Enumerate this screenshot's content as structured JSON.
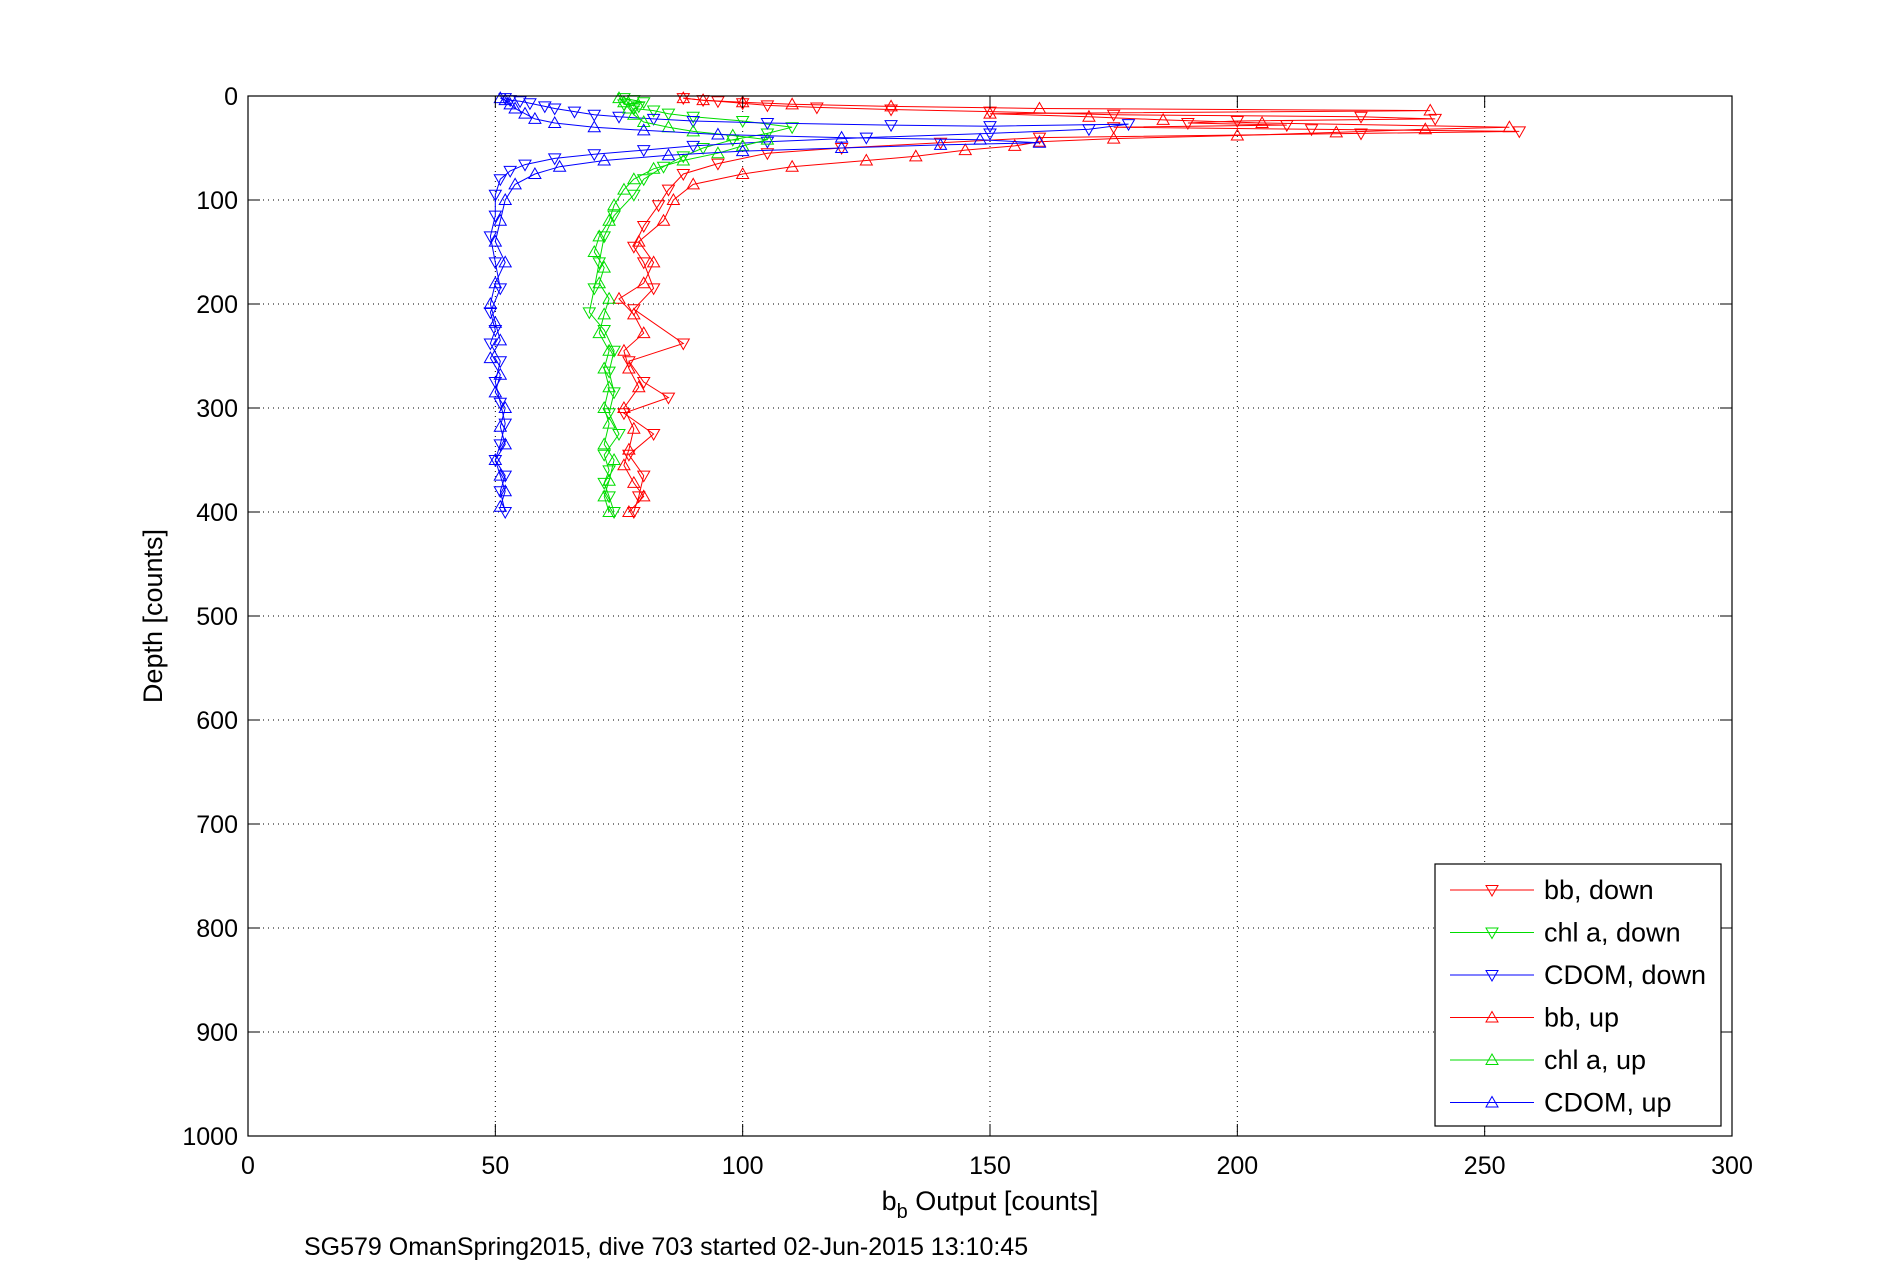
{
  "chart_data": {
    "type": "scatter",
    "xlabel": {
      "main": "b",
      "sub": "b",
      "rest": " Output [counts]"
    },
    "ylabel": "Depth [counts]",
    "caption": "SG579 OmanSpring2015, dive 703 started 02-Jun-2015 13:10:45",
    "xlim": [
      0,
      300
    ],
    "ylim": [
      0,
      1000
    ],
    "y_reversed": true,
    "grid": true,
    "legend_position": "bottom-right",
    "x_ticks": [
      "0",
      "50",
      "100",
      "150",
      "200",
      "250",
      "300"
    ],
    "y_ticks": [
      "0",
      "100",
      "200",
      "300",
      "400",
      "500",
      "600",
      "700",
      "800",
      "900",
      "1000"
    ],
    "series": [
      {
        "name": "bb, down",
        "color": "#ff0000",
        "marker": "triangle-down",
        "points": [
          [
            88,
            2
          ],
          [
            92,
            4
          ],
          [
            95,
            5
          ],
          [
            100,
            7
          ],
          [
            105,
            9
          ],
          [
            115,
            11
          ],
          [
            130,
            13
          ],
          [
            150,
            15
          ],
          [
            175,
            18
          ],
          [
            225,
            20
          ],
          [
            240,
            22
          ],
          [
            200,
            24
          ],
          [
            190,
            26
          ],
          [
            210,
            28
          ],
          [
            175,
            30
          ],
          [
            215,
            32
          ],
          [
            257,
            34
          ],
          [
            225,
            36
          ],
          [
            160,
            40
          ],
          [
            140,
            45
          ],
          [
            120,
            50
          ],
          [
            105,
            55
          ],
          [
            95,
            65
          ],
          [
            88,
            75
          ],
          [
            85,
            90
          ],
          [
            83,
            105
          ],
          [
            80,
            125
          ],
          [
            78,
            145
          ],
          [
            80,
            160
          ],
          [
            82,
            185
          ],
          [
            78,
            205
          ],
          [
            88,
            238
          ],
          [
            77,
            255
          ],
          [
            80,
            275
          ],
          [
            85,
            290
          ],
          [
            76,
            305
          ],
          [
            82,
            325
          ],
          [
            77,
            345
          ],
          [
            80,
            365
          ],
          [
            79,
            385
          ],
          [
            78,
            400
          ]
        ]
      },
      {
        "name": "chl a, down",
        "color": "#00dd00",
        "marker": "triangle-down",
        "points": [
          [
            76,
            2
          ],
          [
            78,
            4
          ],
          [
            80,
            6
          ],
          [
            76,
            8
          ],
          [
            79,
            10
          ],
          [
            78,
            12
          ],
          [
            82,
            14
          ],
          [
            85,
            17
          ],
          [
            90,
            20
          ],
          [
            100,
            24
          ],
          [
            110,
            30
          ],
          [
            105,
            36
          ],
          [
            98,
            42
          ],
          [
            92,
            50
          ],
          [
            88,
            58
          ],
          [
            84,
            68
          ],
          [
            80,
            80
          ],
          [
            78,
            95
          ],
          [
            74,
            115
          ],
          [
            72,
            135
          ],
          [
            71,
            160
          ],
          [
            70,
            185
          ],
          [
            69,
            208
          ],
          [
            72,
            225
          ],
          [
            74,
            245
          ],
          [
            73,
            265
          ],
          [
            74,
            285
          ],
          [
            73,
            305
          ],
          [
            75,
            325
          ],
          [
            72,
            345
          ],
          [
            73,
            360
          ],
          [
            72,
            372
          ],
          [
            73,
            385
          ],
          [
            74,
            400
          ]
        ]
      },
      {
        "name": "CDOM, down",
        "color": "#0000ff",
        "marker": "triangle-down",
        "points": [
          [
            52,
            2
          ],
          [
            53,
            4
          ],
          [
            55,
            5
          ],
          [
            57,
            7
          ],
          [
            60,
            10
          ],
          [
            62,
            12
          ],
          [
            66,
            15
          ],
          [
            70,
            18
          ],
          [
            75,
            20
          ],
          [
            82,
            22
          ],
          [
            90,
            24
          ],
          [
            105,
            26
          ],
          [
            130,
            28
          ],
          [
            150,
            29
          ],
          [
            178,
            27
          ],
          [
            170,
            32
          ],
          [
            150,
            36
          ],
          [
            125,
            40
          ],
          [
            105,
            44
          ],
          [
            90,
            48
          ],
          [
            80,
            52
          ],
          [
            70,
            56
          ],
          [
            62,
            60
          ],
          [
            56,
            66
          ],
          [
            53,
            72
          ],
          [
            51,
            80
          ],
          [
            50,
            95
          ],
          [
            50,
            115
          ],
          [
            49,
            135
          ],
          [
            50,
            160
          ],
          [
            51,
            185
          ],
          [
            49,
            208
          ],
          [
            50,
            225
          ],
          [
            49,
            238
          ],
          [
            51,
            255
          ],
          [
            50,
            275
          ],
          [
            51,
            295
          ],
          [
            52,
            315
          ],
          [
            51,
            335
          ],
          [
            50,
            350
          ],
          [
            52,
            365
          ],
          [
            51,
            380
          ],
          [
            52,
            400
          ]
        ]
      },
      {
        "name": "bb, up",
        "color": "#ff0000",
        "marker": "triangle-up",
        "points": [
          [
            77,
            400
          ],
          [
            80,
            385
          ],
          [
            78,
            372
          ],
          [
            76,
            355
          ],
          [
            77,
            340
          ],
          [
            78,
            320
          ],
          [
            76,
            300
          ],
          [
            79,
            280
          ],
          [
            77,
            262
          ],
          [
            76,
            245
          ],
          [
            80,
            228
          ],
          [
            78,
            210
          ],
          [
            75,
            195
          ],
          [
            80,
            180
          ],
          [
            82,
            160
          ],
          [
            79,
            140
          ],
          [
            84,
            120
          ],
          [
            86,
            100
          ],
          [
            90,
            85
          ],
          [
            100,
            75
          ],
          [
            110,
            68
          ],
          [
            125,
            62
          ],
          [
            135,
            58
          ],
          [
            145,
            52
          ],
          [
            155,
            48
          ],
          [
            160,
            44
          ],
          [
            175,
            41
          ],
          [
            200,
            38
          ],
          [
            220,
            35
          ],
          [
            238,
            32
          ],
          [
            255,
            30
          ],
          [
            205,
            26
          ],
          [
            185,
            23
          ],
          [
            170,
            20
          ],
          [
            150,
            17
          ],
          [
            239,
            14
          ],
          [
            160,
            12
          ],
          [
            130,
            10
          ],
          [
            110,
            8
          ],
          [
            100,
            6
          ],
          [
            92,
            4
          ],
          [
            88,
            2
          ]
        ]
      },
      {
        "name": "chl a, up",
        "color": "#00dd00",
        "marker": "triangle-up",
        "points": [
          [
            73,
            400
          ],
          [
            72,
            385
          ],
          [
            73,
            370
          ],
          [
            74,
            350
          ],
          [
            72,
            335
          ],
          [
            73,
            315
          ],
          [
            72,
            300
          ],
          [
            73,
            280
          ],
          [
            72,
            262
          ],
          [
            73,
            245
          ],
          [
            71,
            228
          ],
          [
            72,
            210
          ],
          [
            73,
            195
          ],
          [
            71,
            180
          ],
          [
            72,
            165
          ],
          [
            70,
            150
          ],
          [
            71,
            135
          ],
          [
            73,
            120
          ],
          [
            74,
            105
          ],
          [
            76,
            90
          ],
          [
            78,
            80
          ],
          [
            82,
            70
          ],
          [
            88,
            62
          ],
          [
            95,
            55
          ],
          [
            100,
            48
          ],
          [
            105,
            42
          ],
          [
            98,
            38
          ],
          [
            90,
            34
          ],
          [
            85,
            30
          ],
          [
            80,
            25
          ],
          [
            78,
            18
          ],
          [
            77,
            12
          ],
          [
            76,
            6
          ],
          [
            75,
            2
          ]
        ]
      },
      {
        "name": "CDOM, up",
        "color": "#0000ff",
        "marker": "triangle-up",
        "points": [
          [
            51,
            395
          ],
          [
            52,
            380
          ],
          [
            51,
            365
          ],
          [
            50,
            350
          ],
          [
            52,
            335
          ],
          [
            51,
            318
          ],
          [
            52,
            300
          ],
          [
            50,
            285
          ],
          [
            51,
            268
          ],
          [
            49,
            252
          ],
          [
            51,
            235
          ],
          [
            50,
            218
          ],
          [
            49,
            200
          ],
          [
            50,
            180
          ],
          [
            52,
            160
          ],
          [
            50,
            140
          ],
          [
            51,
            120
          ],
          [
            52,
            100
          ],
          [
            54,
            85
          ],
          [
            58,
            75
          ],
          [
            63,
            68
          ],
          [
            72,
            62
          ],
          [
            85,
            57
          ],
          [
            100,
            53
          ],
          [
            120,
            50
          ],
          [
            140,
            47
          ],
          [
            160,
            45
          ],
          [
            148,
            42
          ],
          [
            120,
            40
          ],
          [
            95,
            37
          ],
          [
            80,
            33
          ],
          [
            70,
            30
          ],
          [
            62,
            26
          ],
          [
            58,
            22
          ],
          [
            56,
            17
          ],
          [
            54,
            12
          ],
          [
            53,
            8
          ],
          [
            52,
            4
          ],
          [
            51,
            2
          ]
        ]
      }
    ]
  }
}
